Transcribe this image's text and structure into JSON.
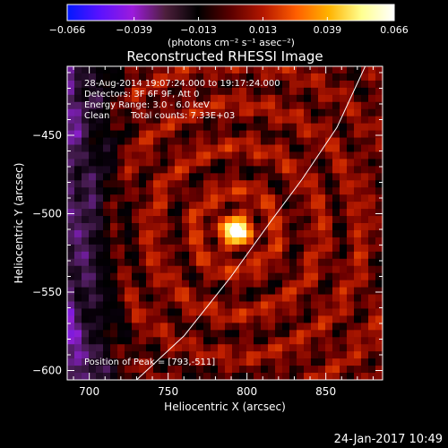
{
  "chart_data": {
    "type": "heatmap",
    "title": "Reconstructed RHESSI Image",
    "colorbar": {
      "min": -0.066,
      "max": 0.066,
      "ticks": [
        "-0.066",
        "-0.039",
        "-0.013",
        "0.013",
        "0.039",
        "0.066"
      ],
      "tick_values": [
        -0.066,
        -0.039,
        -0.013,
        0.013,
        0.039,
        0.066
      ],
      "unit_label": "(photons cm⁻² s⁻¹ asec⁻²)",
      "colors": [
        "#0018ff",
        "#5a12ff",
        "#9c1bdc",
        "#4d1f3c",
        "#000000",
        "#5b0000",
        "#b51700",
        "#ff5e00",
        "#ffb300",
        "#ffff90",
        "#ffffff"
      ]
    },
    "info_lines": [
      "28-Aug-2014 19:07:24.000 to 19:17:24.000",
      "Detectors: 3F 6F 9F, Att 0",
      "Energy Range: 3.0 - 6.0 keV"
    ],
    "clean_label": "Clean",
    "total_counts_label": "Total counts: 7.33E+03",
    "peak_text": "Position of Peak = [793,-511]",
    "peak": {
      "x": 793,
      "y": -511
    },
    "xlabel": "Heliocentric X (arcsec)",
    "ylabel": "Heliocentric Y (arcsec)",
    "xlim": [
      686,
      886
    ],
    "ylim": [
      -606,
      -406
    ],
    "xticks": [
      700,
      750,
      800,
      850
    ],
    "yticks": [
      -450,
      -500,
      -550,
      -600
    ],
    "xtick_labels": [
      "700",
      "750",
      "800",
      "850"
    ],
    "ytick_labels": [
      "−450",
      "−500",
      "−550",
      "−600"
    ],
    "limb_curve": [
      [
        730,
        -606
      ],
      [
        760,
        -578
      ],
      [
        790,
        -540
      ],
      [
        815,
        -505
      ],
      [
        835,
        -478
      ],
      [
        857,
        -445
      ],
      [
        875,
        -406
      ]
    ]
  },
  "footer_date": "24-Jan-2017 10:49"
}
